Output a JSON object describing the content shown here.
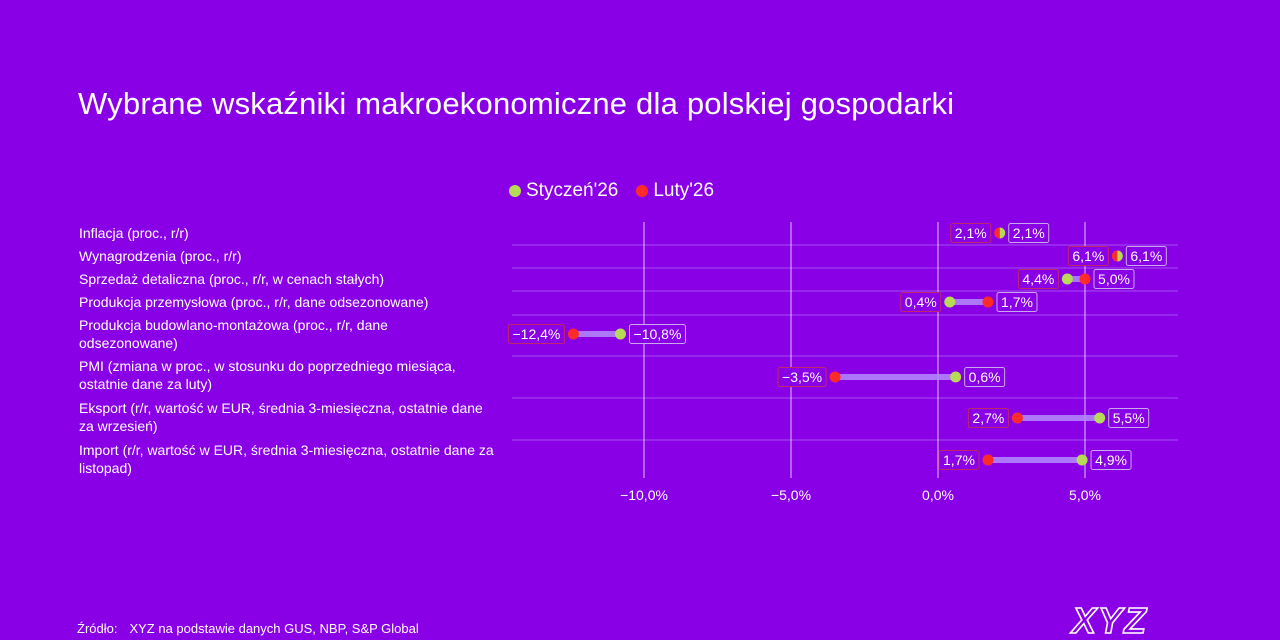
{
  "title": "Wybrane wskaźniki makroekonomiczne dla polskiej gospodarki",
  "colors": {
    "background": "#8A00E6",
    "jan": "#B7DB57",
    "feb": "#FF2B2B",
    "link": "#B48CFF",
    "grid": "#B070F0"
  },
  "chart_data": {
    "type": "dumbbell",
    "title": "Wybrane wskaźniki makroekonomiczne dla polskiej gospodarki",
    "series": [
      {
        "name": "Styczeń'26",
        "color": "#B7DB57"
      },
      {
        "name": "Luty'26",
        "color": "#FF2B2B"
      }
    ],
    "legend_position": "top",
    "xlim": [
      -14.5,
      8
    ],
    "x_ticks": [
      -10,
      -5,
      0,
      5
    ],
    "x_tick_labels": [
      "−10,0%",
      "−5,0%",
      "0,0%",
      "5,0%"
    ],
    "grid": true,
    "rows": [
      {
        "label": "Inflacja (proc., r/r)",
        "jan": 2.1,
        "feb": 2.1,
        "jan_label": "2,1%",
        "feb_label": "2,1%"
      },
      {
        "label": "Wynagrodzenia (proc., r/r)",
        "jan": 6.1,
        "feb": 6.1,
        "jan_label": "6,1%",
        "feb_label": "6,1%"
      },
      {
        "label": "Sprzedaż detaliczna (proc., r/r, w cenach stałych)",
        "jan": 4.4,
        "feb": 5.0,
        "jan_label": "4,4%",
        "feb_label": "5,0%"
      },
      {
        "label": "Produkcja przemysłowa (proc., r/r, dane odsezonowane)",
        "jan": 0.4,
        "feb": 1.7,
        "jan_label": "0,4%",
        "feb_label": "1,7%"
      },
      {
        "label": "Produkcja budowlano-montażowa (proc., r/r, dane odsezonowane)",
        "jan": -10.8,
        "feb": -12.4,
        "jan_label": "−10,8%",
        "feb_label": "−12,4%"
      },
      {
        "label": "PMI (zmiana w proc., w stosunku do poprzedniego miesiąca, ostatnie dane za luty)",
        "jan": 0.6,
        "feb": -3.5,
        "jan_label": "0,6%",
        "feb_label": "−3,5%"
      },
      {
        "label": "Eksport (r/r, wartość w EUR, średnia 3-miesięczna, ostatnie dane za wrzesień)",
        "jan": 5.5,
        "feb": 2.7,
        "jan_label": "5,5%",
        "feb_label": "2,7%"
      },
      {
        "label": "Import (r/r, wartość w EUR, średnia 3-miesięczna, ostatnie dane za listopad)",
        "jan": 4.9,
        "feb": 1.7,
        "jan_label": "4,9%",
        "feb_label": "1,7%"
      }
    ]
  },
  "source": {
    "label": "Źródło:",
    "text": "XYZ na podstawie danych GUS, NBP, S&P Global"
  },
  "logo": {
    "text": "XYZ"
  }
}
